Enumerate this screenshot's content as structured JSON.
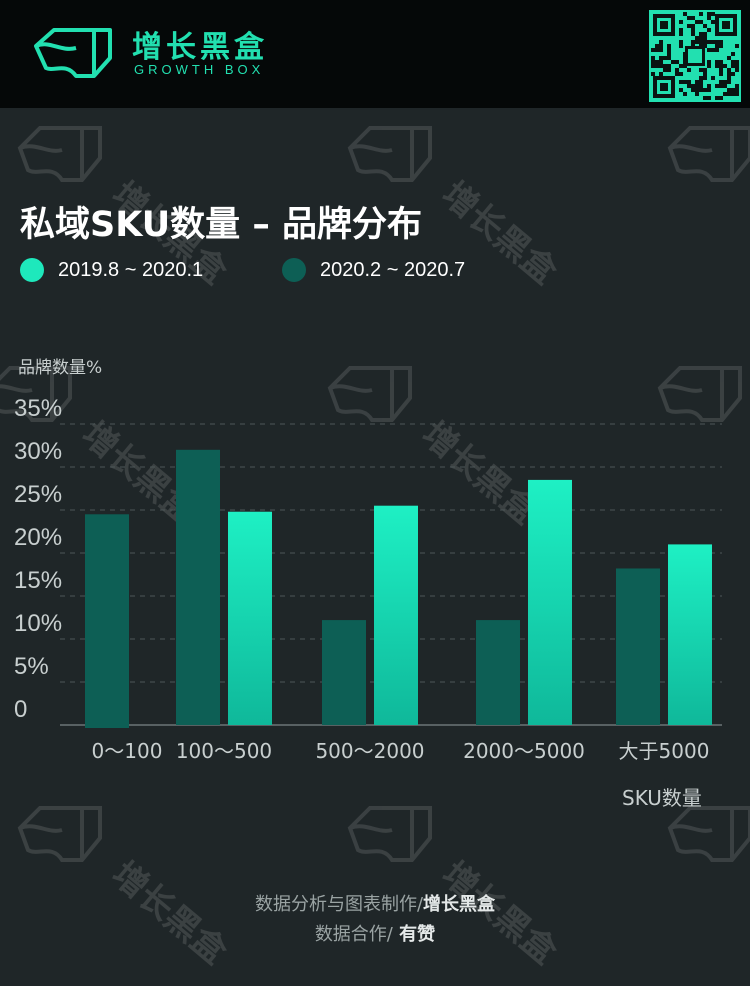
{
  "brand": {
    "name_cn": "增长黑盒",
    "name_en": "GROWTH BOX",
    "accent_color": "#22e0b0",
    "logo_icon": "growth-box-logo-icon",
    "qr_icon": "qr-code-icon",
    "watermark_text": "增长黑盒"
  },
  "chart_data": {
    "type": "bar",
    "title": "私域SKU数量 – 品牌分布",
    "ylabel": "品牌数量%",
    "xlabel": "SKU数量",
    "categories": [
      "0～100",
      "100～500",
      "500～2000",
      "2000～5000",
      "大于5000"
    ],
    "series": [
      {
        "name": "2019.8 ~ 2020.1",
        "color": "#1ee8bc",
        "values": [
          null,
          24.8,
          25.5,
          28.5,
          21.0
        ]
      },
      {
        "name": "2020.2 ~ 2020.7",
        "color": "#0d5f55",
        "values": [
          24.5,
          32.0,
          12.2,
          12.2,
          18.2
        ]
      }
    ],
    "yticks": [
      "0",
      "5%",
      "10%",
      "15%",
      "20%",
      "25%",
      "30%",
      "35%"
    ],
    "ylim": [
      0,
      35
    ],
    "grid": true,
    "legend_position": "top-left"
  },
  "footer": {
    "line1_prefix": "数据分析与图表制作/",
    "line1_strong": "增长黑盒",
    "line2_prefix": "数据合作/",
    "line2_strong": " 有赞"
  }
}
